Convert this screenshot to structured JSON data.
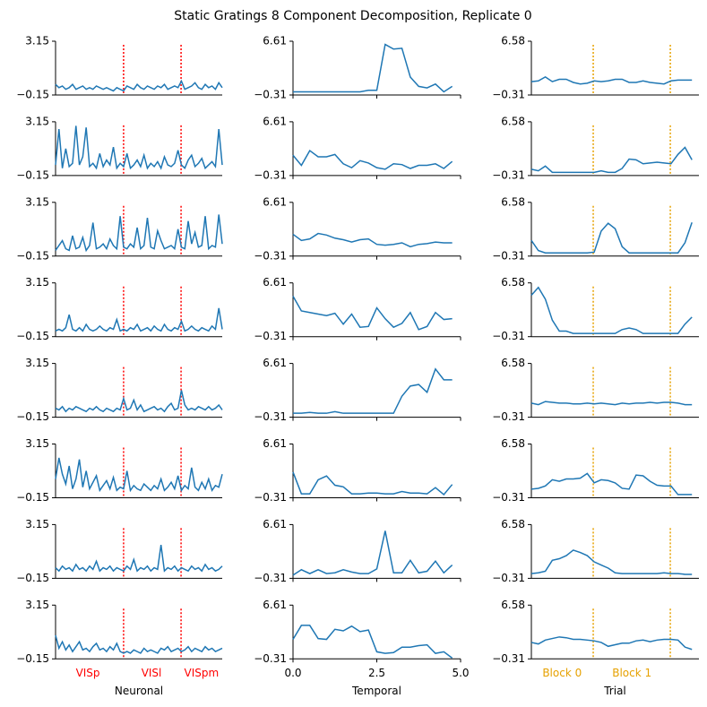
{
  "title": "Static Gratings 8 Component Decomposition, Replicate 0",
  "chart_data": [
    {
      "type": "line",
      "x_label": "Neuronal",
      "color": "#1f77b4",
      "xlim": [
        0,
        49
      ],
      "ylim": [
        -0.15,
        3.15
      ],
      "yticks": [
        {
          "value": -0.15,
          "label": "−0.15"
        },
        {
          "value": 3.15,
          "label": "3.15"
        }
      ],
      "bound_color": "#ff0000",
      "bounds": [
        20.0,
        36.9
      ],
      "group_labels": [
        {
          "label": "VISp",
          "x": 9.5
        },
        {
          "label": "VISl",
          "x": 28.2
        },
        {
          "label": "VISpm",
          "x": 42.9
        }
      ],
      "rows": [
        [
          0.5,
          0.3,
          0.4,
          0.2,
          0.3,
          0.5,
          0.2,
          0.3,
          0.4,
          0.2,
          0.3,
          0.2,
          0.4,
          0.3,
          0.2,
          0.3,
          0.2,
          0.1,
          0.3,
          0.2,
          0.1,
          0.4,
          0.3,
          0.2,
          0.5,
          0.3,
          0.2,
          0.4,
          0.3,
          0.2,
          0.4,
          0.3,
          0.5,
          0.2,
          0.3,
          0.4,
          0.3,
          0.7,
          0.2,
          0.3,
          0.4,
          0.6,
          0.3,
          0.2,
          0.5,
          0.3,
          0.4,
          0.2,
          0.6,
          0.3
        ],
        [
          0.5,
          2.7,
          0.3,
          1.5,
          0.4,
          0.6,
          2.9,
          0.5,
          1.0,
          2.8,
          0.4,
          0.6,
          0.3,
          1.2,
          0.4,
          0.8,
          0.5,
          1.6,
          0.3,
          0.6,
          0.4,
          1.2,
          0.3,
          0.5,
          0.8,
          0.4,
          1.1,
          0.3,
          0.6,
          0.4,
          0.7,
          0.3,
          1.0,
          0.5,
          0.4,
          0.6,
          1.4,
          0.5,
          0.3,
          0.8,
          1.1,
          0.4,
          0.6,
          0.9,
          0.3,
          0.5,
          0.7,
          0.4,
          2.7,
          0.5
        ],
        [
          0.2,
          0.5,
          0.8,
          0.3,
          0.2,
          1.1,
          0.3,
          0.4,
          1.0,
          0.2,
          0.5,
          1.9,
          0.3,
          0.4,
          0.6,
          0.3,
          0.9,
          0.5,
          0.3,
          2.3,
          0.4,
          0.3,
          0.6,
          0.4,
          1.6,
          0.3,
          0.5,
          2.2,
          0.4,
          0.3,
          1.4,
          0.8,
          0.3,
          0.4,
          0.5,
          0.3,
          1.5,
          0.4,
          0.3,
          2.0,
          0.6,
          1.3,
          0.4,
          0.5,
          2.3,
          0.3,
          0.5,
          0.4,
          2.4,
          0.6
        ],
        [
          0.2,
          0.3,
          0.2,
          0.4,
          1.2,
          0.3,
          0.2,
          0.4,
          0.2,
          0.6,
          0.3,
          0.2,
          0.3,
          0.5,
          0.3,
          0.2,
          0.4,
          0.3,
          0.9,
          0.2,
          0.3,
          0.2,
          0.4,
          0.3,
          0.6,
          0.2,
          0.3,
          0.4,
          0.2,
          0.5,
          0.3,
          0.2,
          0.6,
          0.3,
          0.2,
          0.4,
          0.3,
          0.8,
          0.2,
          0.3,
          0.5,
          0.3,
          0.2,
          0.4,
          0.3,
          0.2,
          0.5,
          0.3,
          1.6,
          0.3
        ],
        [
          0.4,
          0.3,
          0.5,
          0.2,
          0.4,
          0.3,
          0.5,
          0.4,
          0.3,
          0.2,
          0.4,
          0.3,
          0.5,
          0.3,
          0.2,
          0.4,
          0.3,
          0.2,
          0.4,
          0.3,
          1.0,
          0.3,
          0.4,
          0.9,
          0.3,
          0.6,
          0.2,
          0.3,
          0.4,
          0.5,
          0.3,
          0.4,
          0.2,
          0.5,
          0.7,
          0.3,
          0.4,
          1.5,
          0.6,
          0.3,
          0.4,
          0.3,
          0.5,
          0.4,
          0.3,
          0.5,
          0.3,
          0.4,
          0.6,
          0.3
        ],
        [
          1.0,
          2.3,
          1.3,
          0.7,
          1.8,
          0.4,
          1.0,
          2.2,
          0.5,
          1.5,
          0.4,
          0.8,
          1.2,
          0.3,
          0.6,
          0.9,
          0.4,
          1.1,
          0.3,
          0.5,
          0.4,
          1.5,
          0.3,
          0.6,
          0.4,
          0.3,
          0.7,
          0.5,
          0.3,
          0.6,
          0.4,
          1.0,
          0.3,
          0.5,
          0.8,
          0.4,
          1.2,
          0.3,
          0.6,
          0.4,
          1.7,
          0.5,
          0.3,
          0.8,
          0.4,
          1.0,
          0.3,
          0.6,
          0.5,
          1.3
        ],
        [
          0.5,
          0.3,
          0.6,
          0.4,
          0.5,
          0.3,
          0.7,
          0.4,
          0.5,
          0.3,
          0.6,
          0.4,
          0.9,
          0.3,
          0.5,
          0.4,
          0.6,
          0.3,
          0.5,
          0.4,
          0.3,
          0.6,
          0.4,
          1.0,
          0.3,
          0.5,
          0.4,
          0.6,
          0.3,
          0.5,
          0.4,
          1.9,
          0.3,
          0.5,
          0.4,
          0.6,
          0.3,
          0.5,
          0.4,
          0.3,
          0.6,
          0.4,
          0.5,
          0.3,
          0.7,
          0.4,
          0.5,
          0.3,
          0.4,
          0.6
        ],
        [
          1.3,
          0.5,
          0.9,
          0.4,
          0.7,
          0.3,
          0.6,
          0.9,
          0.4,
          0.5,
          0.3,
          0.6,
          0.8,
          0.4,
          0.5,
          0.3,
          0.6,
          0.4,
          0.8,
          0.3,
          0.2,
          0.3,
          0.2,
          0.4,
          0.3,
          0.2,
          0.5,
          0.3,
          0.4,
          0.3,
          0.2,
          0.5,
          0.4,
          0.6,
          0.3,
          0.4,
          0.5,
          0.3,
          0.4,
          0.6,
          0.3,
          0.5,
          0.4,
          0.3,
          0.6,
          0.4,
          0.5,
          0.3,
          0.4,
          0.5
        ]
      ]
    },
    {
      "type": "line",
      "x_label": "Temporal",
      "color": "#1f77b4",
      "xlim": [
        0,
        5
      ],
      "xticks": [
        {
          "value": 0,
          "label": "0.0"
        },
        {
          "value": 2.5,
          "label": "2.5"
        },
        {
          "value": 5,
          "label": "5.0"
        }
      ],
      "ylim": [
        -0.31,
        6.61
      ],
      "yticks": [
        {
          "value": -0.31,
          "label": "−0.31"
        },
        {
          "value": 6.61,
          "label": "6.61"
        }
      ],
      "x": [
        0,
        0.25,
        0.5,
        0.75,
        1,
        1.25,
        1.5,
        1.75,
        2,
        2.25,
        2.5,
        2.75,
        3,
        3.25,
        3.5,
        3.75,
        4,
        4.25,
        4.5,
        4.75
      ],
      "rows": [
        [
          0.1,
          0.1,
          0.1,
          0.1,
          0.1,
          0.1,
          0.1,
          0.1,
          0.1,
          0.3,
          0.3,
          6.2,
          5.6,
          5.7,
          2.0,
          0.8,
          0.6,
          1.1,
          0.1,
          0.8
        ],
        [
          2.3,
          1.0,
          2.9,
          2.1,
          2.1,
          2.4,
          1.2,
          0.7,
          1.6,
          1.3,
          0.7,
          0.5,
          1.2,
          1.1,
          0.6,
          1.0,
          1.0,
          1.2,
          0.6,
          1.5
        ],
        [
          2.5,
          1.7,
          1.9,
          2.6,
          2.4,
          2.0,
          1.8,
          1.5,
          1.8,
          1.9,
          1.2,
          1.1,
          1.2,
          1.4,
          0.9,
          1.2,
          1.3,
          1.5,
          1.4,
          1.4
        ],
        [
          4.9,
          3.0,
          2.8,
          2.6,
          2.4,
          2.7,
          1.3,
          2.6,
          0.9,
          1.0,
          3.4,
          2.0,
          0.9,
          1.4,
          2.8,
          0.6,
          1.0,
          2.8,
          1.9,
          2.0
        ],
        [
          0.2,
          0.2,
          0.3,
          0.2,
          0.2,
          0.4,
          0.2,
          0.2,
          0.2,
          0.2,
          0.2,
          0.2,
          0.2,
          2.4,
          3.7,
          3.9,
          2.9,
          5.9,
          4.5,
          4.5
        ],
        [
          3.0,
          0.2,
          0.2,
          2.0,
          2.5,
          1.3,
          1.1,
          0.2,
          0.2,
          0.3,
          0.3,
          0.2,
          0.2,
          0.5,
          0.3,
          0.3,
          0.2,
          1.0,
          0.1,
          1.4
        ],
        [
          0.1,
          0.8,
          0.3,
          0.8,
          0.3,
          0.4,
          0.8,
          0.5,
          0.3,
          0.3,
          0.9,
          5.8,
          0.4,
          0.4,
          2.0,
          0.4,
          0.6,
          1.9,
          0.4,
          1.4
        ],
        [
          2.2,
          4.0,
          4.0,
          2.3,
          2.2,
          3.5,
          3.3,
          3.9,
          3.2,
          3.4,
          0.6,
          0.4,
          0.5,
          1.2,
          1.2,
          1.4,
          1.5,
          0.4,
          0.6,
          -0.2
        ]
      ]
    },
    {
      "type": "line",
      "x_label": "Trial",
      "color": "#1f77b4",
      "xlim": [
        0,
        24
      ],
      "ylim": [
        -0.31,
        6.58
      ],
      "yticks": [
        {
          "value": -0.31,
          "label": "−0.31"
        },
        {
          "value": 6.58,
          "label": "6.58"
        }
      ],
      "bound_color": "#e6a100",
      "bounds": [
        8.86,
        19.9
      ],
      "group_labels": [
        {
          "label": "Block 0",
          "x": 4.4
        },
        {
          "label": "Block 1",
          "x": 14.4
        }
      ],
      "rows": [
        [
          1.4,
          1.5,
          2.0,
          1.4,
          1.7,
          1.7,
          1.3,
          1.1,
          1.2,
          1.5,
          1.4,
          1.5,
          1.7,
          1.7,
          1.3,
          1.3,
          1.5,
          1.3,
          1.2,
          1.1,
          1.5,
          1.6,
          1.6,
          1.6
        ],
        [
          0.5,
          0.3,
          0.9,
          0.1,
          0.1,
          0.1,
          0.1,
          0.1,
          0.1,
          0.1,
          0.3,
          0.1,
          0.1,
          0.6,
          1.8,
          1.7,
          1.2,
          1.3,
          1.4,
          1.3,
          1.2,
          2.4,
          3.3,
          1.7
        ],
        [
          1.7,
          0.4,
          0.1,
          0.1,
          0.1,
          0.1,
          0.1,
          0.1,
          0.1,
          0.2,
          2.9,
          3.9,
          3.2,
          0.9,
          0.1,
          0.1,
          0.1,
          0.1,
          0.1,
          0.1,
          0.1,
          0.1,
          1.4,
          4.0
        ],
        [
          5.0,
          6.0,
          4.5,
          1.8,
          0.4,
          0.4,
          0.1,
          0.1,
          0.1,
          0.1,
          0.1,
          0.1,
          0.1,
          0.6,
          0.8,
          0.6,
          0.1,
          0.1,
          0.1,
          0.1,
          0.1,
          0.1,
          1.3,
          2.2
        ],
        [
          1.5,
          1.3,
          1.7,
          1.6,
          1.5,
          1.5,
          1.4,
          1.4,
          1.5,
          1.4,
          1.5,
          1.4,
          1.3,
          1.5,
          1.4,
          1.5,
          1.5,
          1.6,
          1.5,
          1.6,
          1.6,
          1.5,
          1.3,
          1.3
        ],
        [
          0.8,
          0.9,
          1.2,
          2.0,
          1.8,
          2.1,
          2.1,
          2.2,
          2.8,
          1.6,
          2.0,
          1.9,
          1.6,
          0.9,
          0.8,
          2.6,
          2.5,
          1.8,
          1.3,
          1.2,
          1.2,
          0.1,
          0.1,
          0.1
        ],
        [
          0.3,
          0.4,
          0.6,
          2.0,
          2.2,
          2.6,
          3.3,
          3.0,
          2.6,
          1.8,
          1.4,
          1.0,
          0.4,
          0.3,
          0.3,
          0.3,
          0.3,
          0.3,
          0.3,
          0.4,
          0.3,
          0.3,
          0.2,
          0.2
        ],
        [
          1.8,
          1.6,
          2.1,
          2.3,
          2.5,
          2.4,
          2.2,
          2.2,
          2.1,
          2.0,
          1.8,
          1.3,
          1.5,
          1.7,
          1.7,
          2.0,
          2.1,
          1.9,
          2.1,
          2.2,
          2.2,
          2.1,
          1.2,
          0.9
        ]
      ]
    }
  ]
}
